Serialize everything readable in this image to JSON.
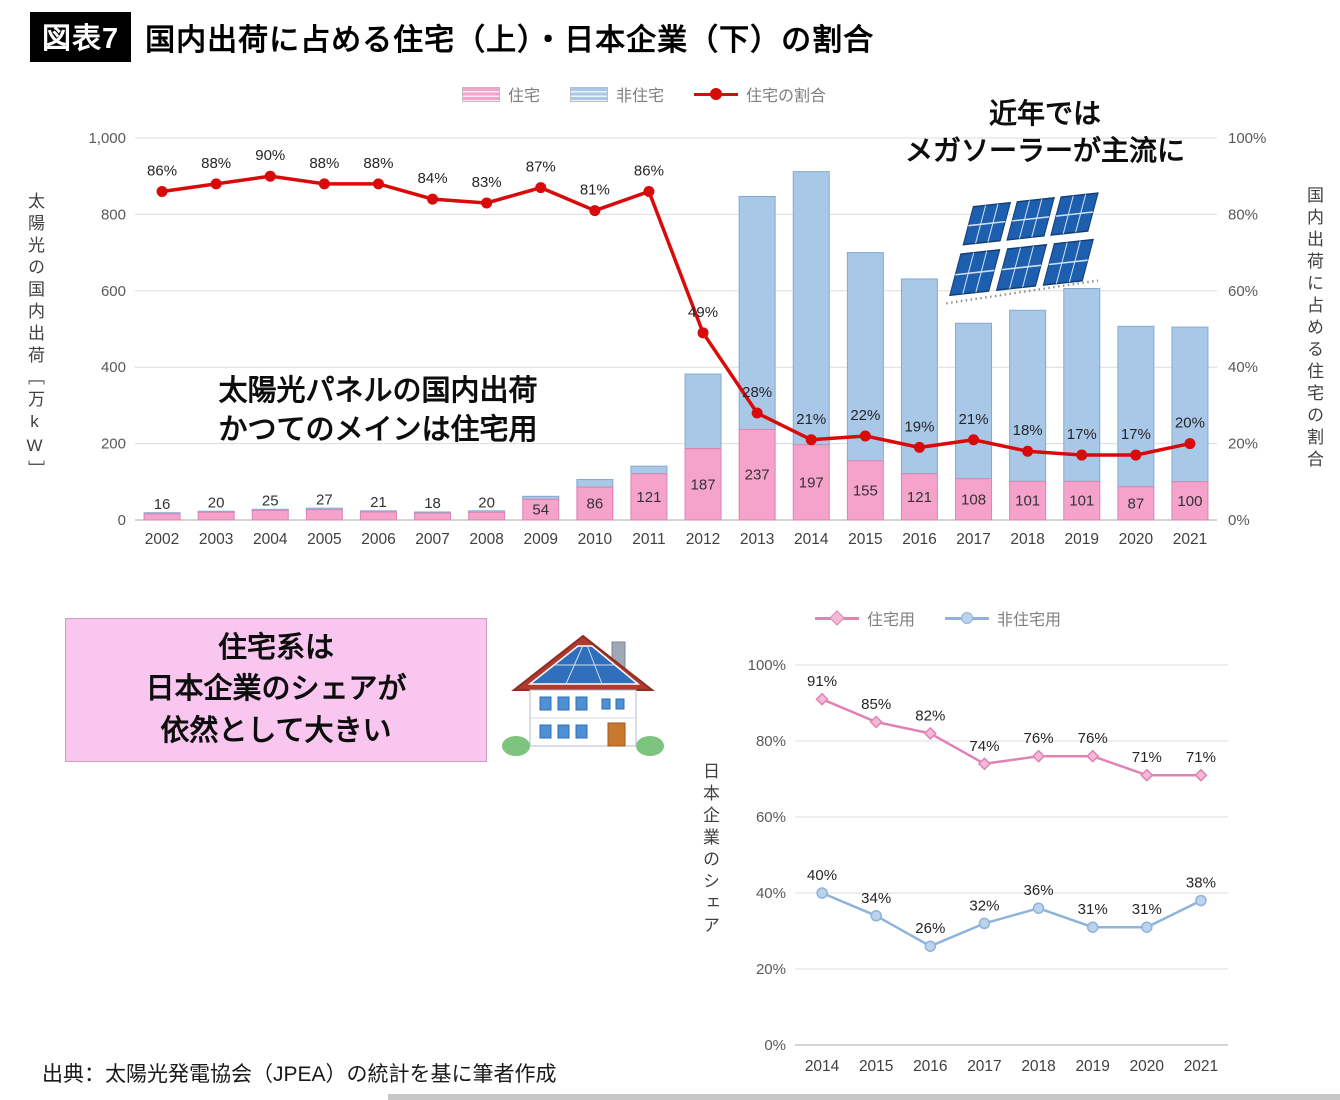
{
  "page": {
    "tag": "図表7",
    "title": "国内出荷に占める住宅（上）・日本企業（下）の割合",
    "source": "出典：太陽光発電協会（JPEA）の統計を基に筆者作成"
  },
  "annotations": {
    "mega_solar_line1": "近年では",
    "mega_solar_line2": "メガソーラーが主流に",
    "panel_note_line1": "太陽光パネルの国内出荷",
    "panel_note_line2": "かつてのメインは住宅用",
    "pink_box_line1": "住宅系は",
    "pink_box_line2": "日本企業のシェアが",
    "pink_box_line3": "依然として大きい"
  },
  "colors": {
    "residential_bar": "#f5a3cb",
    "nonresidential_bar": "#a9c8e8",
    "ratio_line": "#d90a0a",
    "residential_share_line": "#e083b4",
    "nonresidential_share_line": "#8fb4dc",
    "pink_box_bg": "#f9c6ef"
  },
  "chart_data": [
    {
      "type": "bar",
      "subtype": "stacked-bar-with-line",
      "categories": [
        2002,
        2003,
        2004,
        2005,
        2006,
        2007,
        2008,
        2009,
        2010,
        2011,
        2012,
        2013,
        2014,
        2015,
        2016,
        2017,
        2018,
        2019,
        2020,
        2021
      ],
      "series": [
        {
          "name": "住宅",
          "chart": "bar",
          "color": "#f5a3cb",
          "border": "#d886b2",
          "values": [
            16,
            20,
            25,
            27,
            21,
            18,
            20,
            54,
            86,
            121,
            187,
            237,
            197,
            155,
            121,
            108,
            101,
            101,
            87,
            100
          ]
        },
        {
          "name": "非住宅",
          "chart": "bar",
          "color": "#a9c8e8",
          "border": "#85a9cf",
          "values": [
            3,
            3,
            3,
            4,
            3,
            3,
            4,
            8,
            20,
            20,
            195,
            610,
            715,
            545,
            510,
            407,
            448,
            505,
            420,
            405
          ]
        },
        {
          "name": "住宅の割合",
          "chart": "line",
          "axis": "right",
          "unit": "%",
          "color": "#d90a0a",
          "values": [
            86,
            88,
            90,
            88,
            88,
            84,
            83,
            87,
            81,
            86,
            49,
            28,
            21,
            22,
            19,
            21,
            18,
            17,
            17,
            20
          ]
        }
      ],
      "ylabel_left": "太陽光の国内出荷［万kW］",
      "ylabel_right": "国内出荷に占める住宅の割合",
      "ylim_left": [
        0,
        1000
      ],
      "ylim_right": [
        0,
        100
      ],
      "yticks_left": [
        "0",
        "200",
        "400",
        "600",
        "800",
        "1,000"
      ],
      "yticks_right": [
        "0%",
        "20%",
        "40%",
        "60%",
        "80%",
        "100%"
      ],
      "grid": true,
      "legend_position": "top"
    },
    {
      "type": "line",
      "categories": [
        2014,
        2015,
        2016,
        2017,
        2018,
        2019,
        2020,
        2021
      ],
      "series": [
        {
          "name": "住宅用",
          "unit": "%",
          "color": "#e083b4",
          "marker": "diamond",
          "marker_fill": "#f3b9d6",
          "values": [
            91,
            85,
            82,
            74,
            76,
            76,
            71,
            71
          ]
        },
        {
          "name": "非住宅用",
          "unit": "%",
          "color": "#8fb4dc",
          "marker": "circle",
          "marker_fill": "#bcd3ec",
          "values": [
            40,
            34,
            26,
            32,
            36,
            31,
            31,
            38
          ]
        }
      ],
      "ylabel": "日本企業のシェア",
      "ylim": [
        0,
        100
      ],
      "yticks": [
        "0%",
        "20%",
        "40%",
        "60%",
        "80%",
        "100%"
      ],
      "grid": true,
      "legend_position": "top"
    }
  ]
}
